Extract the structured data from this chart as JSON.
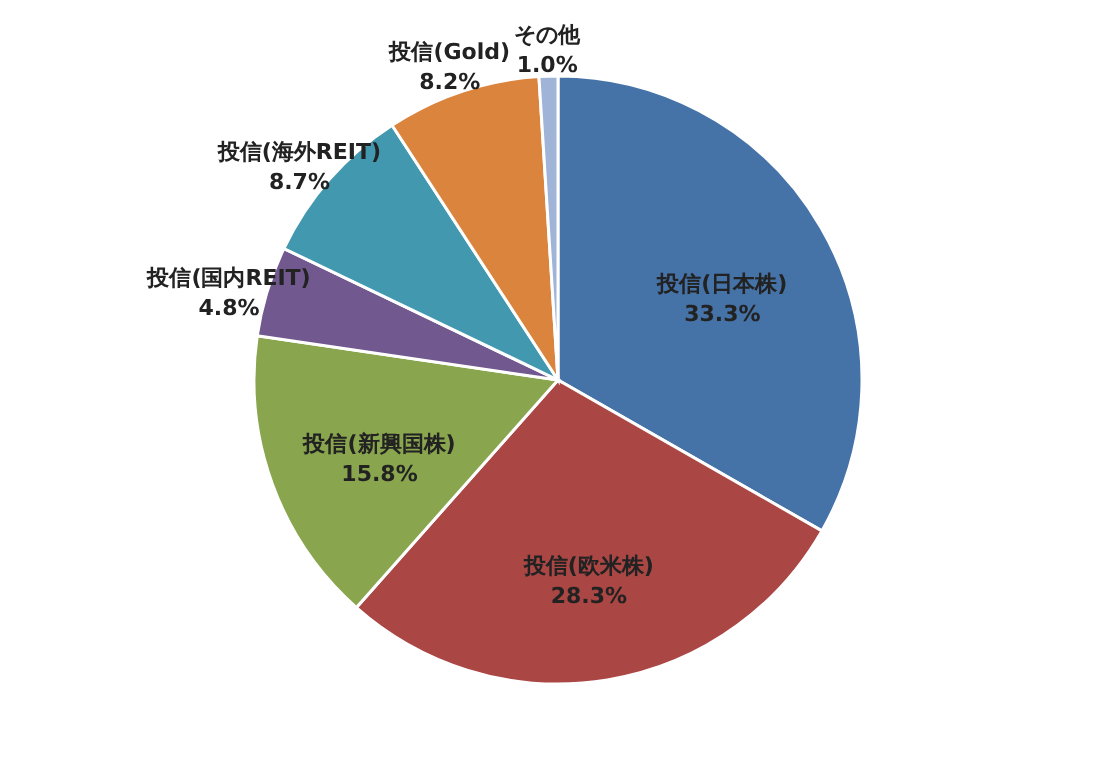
{
  "chart_data": {
    "type": "pie",
    "categories": [
      "投信(日本株)",
      "投信(欧米株)",
      "投信(新興国株)",
      "投信(国内REIT)",
      "投信(海外REIT)",
      "投信(Gold)",
      "その他"
    ],
    "values": [
      33.3,
      28.3,
      15.8,
      4.8,
      8.7,
      8.2,
      1.0
    ],
    "value_labels": [
      "33.3%",
      "28.3%",
      "15.8%",
      "4.8%",
      "8.7%",
      "8.2%",
      "1.0%"
    ],
    "colors": [
      "#4572a7",
      "#aa4643",
      "#89a54e",
      "#71588f",
      "#4198af",
      "#db843d",
      "#a0b4d8"
    ]
  }
}
